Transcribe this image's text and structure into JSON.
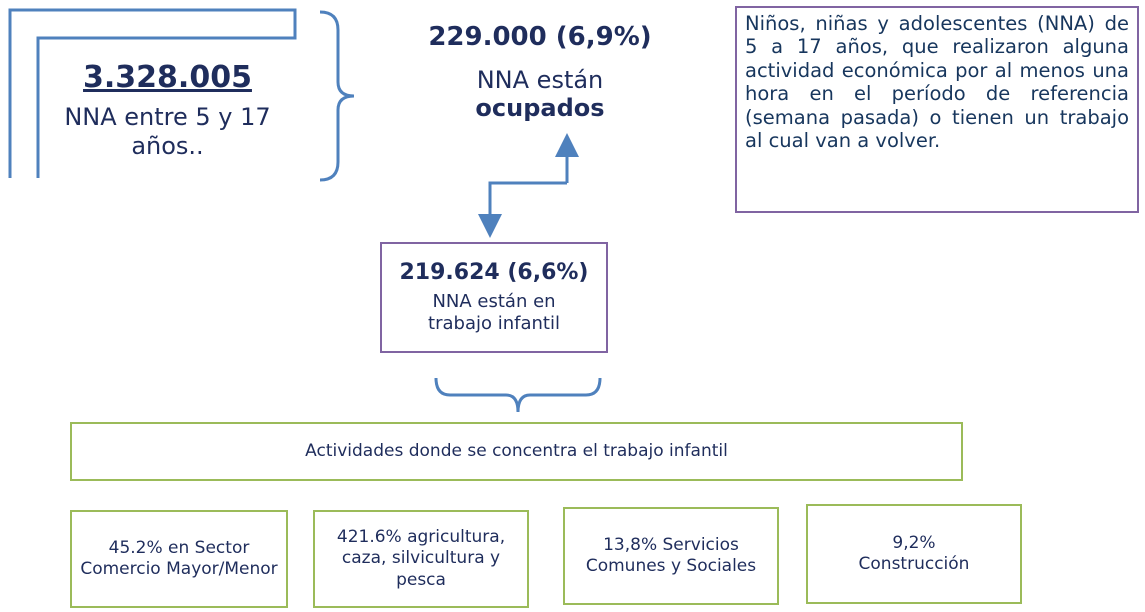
{
  "total": {
    "value": "3.328.005",
    "label": "NNA entre 5 y 17 años.."
  },
  "ocupados": {
    "value": "229.000 (6,9%)",
    "label": "NNA están",
    "label_bold": "ocupados"
  },
  "definition": "Niños, niñas y adolescentes (NNA) de 5 a 17 años, que realizaron alguna actividad económica por al menos una hora en el período de referencia (semana pasada) o tienen un trabajo al cual van a volver.",
  "trabajo_infantil": {
    "value": "219.624 (6,6%)",
    "label": "NNA están en trabajo infantil"
  },
  "activities": {
    "title": "Actividades donde se concentra el trabajo infantil",
    "items": [
      "45.2% en Sector Comercio Mayor/Menor",
      "421.6% agricultura, caza, silvicultura y pesca",
      "13,8% Servicios Comunes y Sociales",
      "9,2% Construcción"
    ]
  }
}
